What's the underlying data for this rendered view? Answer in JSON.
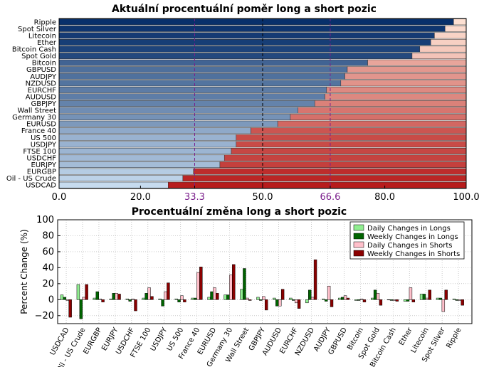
{
  "chart_data": [
    {
      "type": "bar",
      "orientation": "horizontal",
      "stacked": true,
      "title": "Aktuální procentuální poměr long a short pozic",
      "categories": [
        "Ripple",
        "Spot Silver",
        "Litecoin",
        "Ether",
        "Bitcoin Cash",
        "Spot Gold",
        "Bitcoin",
        "GBPUSD",
        "AUDJPY",
        "NZDUSD",
        "EURCHF",
        "AUDUSD",
        "GBPJPY",
        "Wall Street",
        "Germany 30",
        "EURUSD",
        "France 40",
        "US 500",
        "USDJPY",
        "FTSE 100",
        "USDCHF",
        "EURJPY",
        "EURGBP",
        "Oil - US Crude",
        "USDCAD"
      ],
      "series": [
        {
          "key": "long",
          "values": [
            96.9,
            94.8,
            92.2,
            91.3,
            88.6,
            86.7,
            75.8,
            70.8,
            70.2,
            69.2,
            65.7,
            65.3,
            62.8,
            58.7,
            56.8,
            53.7,
            47.1,
            43.5,
            43.5,
            42.3,
            40.6,
            39.5,
            33.0,
            30.4,
            26.8
          ]
        },
        {
          "key": "short",
          "values": [
            3.1,
            5.2,
            7.8,
            8.7,
            11.4,
            13.3,
            24.2,
            29.2,
            29.8,
            30.8,
            34.3,
            34.7,
            37.2,
            41.3,
            43.2,
            46.3,
            52.9,
            56.5,
            56.5,
            57.7,
            59.4,
            60.5,
            67.0,
            69.6,
            73.2
          ]
        }
      ],
      "xlim": [
        0,
        100
      ],
      "xticks": [
        "0.0",
        "20.0",
        "33.3",
        "50.0",
        "66.6",
        "80.0",
        "100.0"
      ],
      "reference_lines": [
        33.3,
        50.0,
        66.6
      ],
      "reference_colors": {
        "33.3": "#7b1f8c",
        "50.0": "#000000",
        "66.6": "#7b1f8c"
      },
      "colors": {
        "long_light": "#c6dbef",
        "long_dark": "#08306b",
        "short_light": "#fde0d2",
        "short_dark": "#b71c1c"
      }
    },
    {
      "type": "bar",
      "title": "Procentuální změna long a short pozic",
      "ylabel": "Percent Change (%)",
      "ylim": [
        -30,
        100
      ],
      "yticks": [
        "−20",
        "0",
        "20",
        "40",
        "60",
        "80",
        "100"
      ],
      "categories": [
        "USDCAD",
        "Oil - US Crude",
        "EURGBP",
        "EURJPY",
        "USDCHF",
        "FTSE 100",
        "USDJPY",
        "US 500",
        "France 40",
        "EURUSD",
        "Germany 30",
        "Wall Street",
        "GBPJPY",
        "AUDUSD",
        "EURCHF",
        "NZDUSD",
        "AUDJPY",
        "GBPUSD",
        "Bitcoin",
        "Spot Gold",
        "Bitcoin Cash",
        "Ether",
        "Litecoin",
        "Spot Silver",
        "Ripple"
      ],
      "series": [
        {
          "name": "Daily Changes in Longs",
          "color": "#90ee90",
          "values": [
            6,
            19,
            2,
            1,
            1,
            2,
            1,
            1,
            2,
            3,
            6,
            13,
            3,
            2,
            2,
            -4,
            1,
            2,
            -1,
            2,
            0,
            -2,
            7,
            2,
            1
          ]
        },
        {
          "name": "Weekly Changes in Longs",
          "color": "#006400",
          "values": [
            3,
            -24,
            10,
            8,
            -2,
            8,
            -8,
            -3,
            2,
            10,
            6,
            39,
            -1,
            -8,
            -1,
            12,
            -2,
            3,
            -1,
            12,
            -1,
            -2,
            7,
            2,
            -1
          ]
        },
        {
          "name": "Daily Changes in Shorts",
          "color": "#ffc0cb",
          "values": [
            -1,
            3,
            1,
            8,
            1,
            15,
            10,
            5,
            34,
            15,
            31,
            2,
            4,
            -8,
            -4,
            3,
            17,
            5,
            1,
            8,
            -1,
            15,
            2,
            -15,
            -1
          ]
        },
        {
          "name": "Weekly Changes in Shorts",
          "color": "#8b0000",
          "values": [
            -22,
            19,
            -3,
            7,
            -14,
            4,
            21,
            -3,
            41,
            8,
            44,
            -1,
            -13,
            13,
            -11,
            50,
            -9,
            2,
            -3,
            -7,
            -2,
            -3,
            12,
            12,
            -7
          ]
        }
      ],
      "legend_position": "top-right",
      "grid": true
    }
  ]
}
